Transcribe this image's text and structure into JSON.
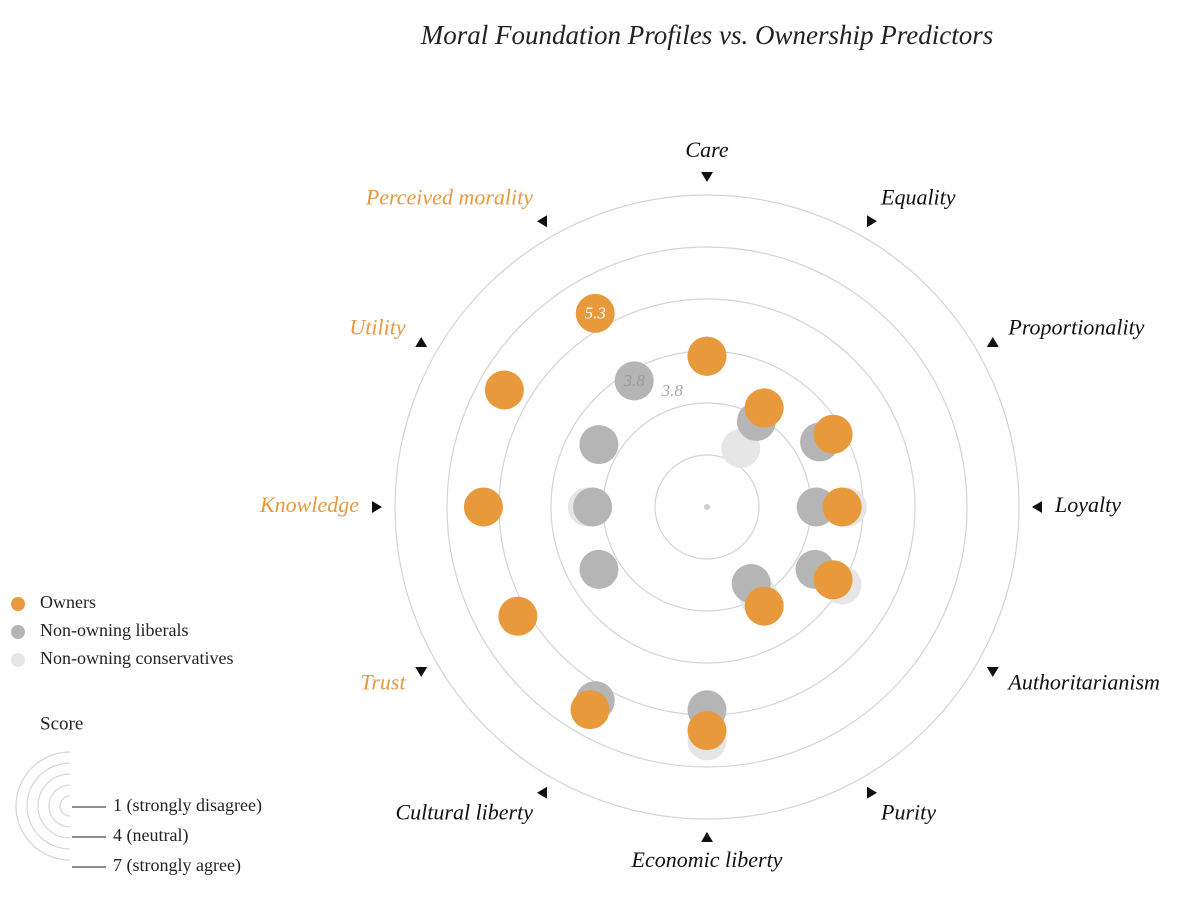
{
  "chart_data": {
    "type": "radial-dot",
    "title": "Moral Foundation Profiles vs. Ownership Predictors",
    "categories": [
      "Care",
      "Equality",
      "Proportionality",
      "Loyalty",
      "Authoritarianism",
      "Purity",
      "Economic liberty",
      "Cultural liberty",
      "Trust",
      "Knowledge",
      "Utility",
      "Perceived morality"
    ],
    "category_colors": [
      "#111111",
      "#111111",
      "#111111",
      "#111111",
      "#111111",
      "#111111",
      "#111111",
      "#111111",
      "#e8993c",
      "#e8993c",
      "#e8993c",
      "#e8993c"
    ],
    "rlim": [
      1,
      7
    ],
    "rticks": [
      2,
      3,
      4,
      5,
      6,
      7
    ],
    "series": [
      {
        "name": "Non-owning conservatives",
        "color": "#e6e6e6",
        "text_color": "#9a9a9a",
        "values": [
          3.9,
          2.3,
          3.8,
          3.7,
          4.0,
          3.0,
          5.5,
          5.3,
          3.4,
          3.3,
          3.4,
          3.8
        ],
        "value_labels": [
          null,
          null,
          null,
          null,
          null,
          null,
          null,
          null,
          null,
          null,
          null,
          "3.8"
        ]
      },
      {
        "name": "Non-owning liberals",
        "color": "#b5b5b5",
        "text_color": "#a8a8a8",
        "values": [
          3.9,
          2.9,
          3.5,
          3.1,
          3.4,
          2.7,
          4.9,
          5.3,
          3.4,
          3.2,
          3.4,
          3.8
        ],
        "value_labels": [
          null,
          null,
          null,
          null,
          null,
          null,
          null,
          null,
          null,
          null,
          null,
          "3.8"
        ]
      },
      {
        "name": "Owners",
        "color": "#e8993c",
        "text_color": "#ffffff",
        "values": [
          3.9,
          3.2,
          3.8,
          3.6,
          3.8,
          3.2,
          5.3,
          5.5,
          5.2,
          5.3,
          5.5,
          5.3
        ],
        "value_labels": [
          null,
          null,
          null,
          null,
          null,
          null,
          null,
          null,
          null,
          null,
          null,
          "5.3"
        ]
      }
    ],
    "legend_order": [
      2,
      1,
      0
    ],
    "score_legend": {
      "title": "Score",
      "items": [
        "1 (strongly disagree)",
        "4 (neutral)",
        "7 (strongly agree)"
      ]
    }
  }
}
